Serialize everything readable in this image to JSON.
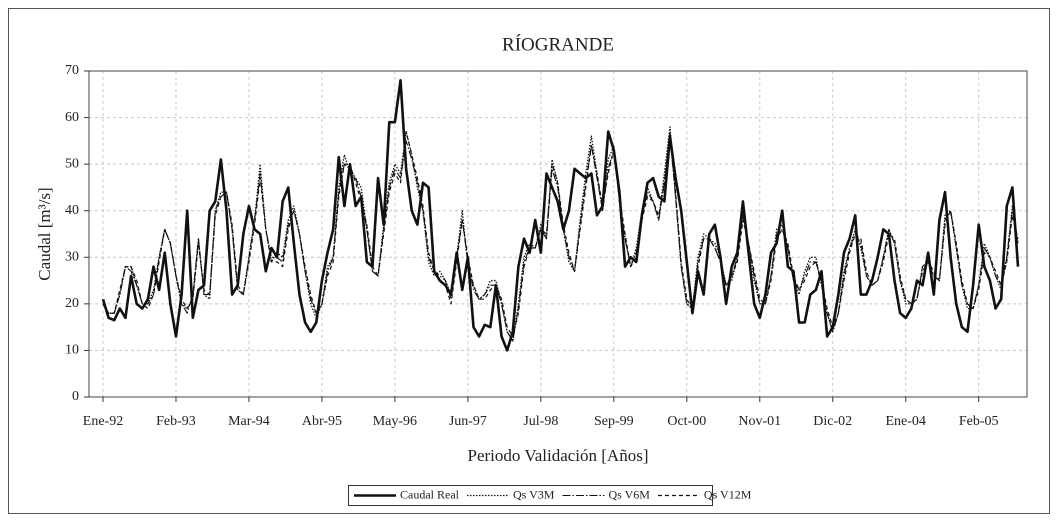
{
  "chart_data": {
    "type": "line",
    "title": "RÍOGRANDE",
    "x_label": "Periodo Validación [Años]",
    "y_label": "Caudal [m³/s]",
    "ylim": [
      0,
      70
    ],
    "yticks": [
      0,
      10,
      20,
      30,
      40,
      50,
      60,
      70
    ],
    "grid": true,
    "legend": "bottom",
    "categories": [
      "Ene-92",
      null,
      null,
      null,
      null,
      null,
      null,
      null,
      null,
      null,
      null,
      null,
      null,
      "Feb-93",
      null,
      null,
      null,
      null,
      null,
      null,
      null,
      null,
      null,
      null,
      null,
      null,
      "Mar-94",
      null,
      null,
      null,
      null,
      null,
      null,
      null,
      null,
      null,
      null,
      null,
      null,
      "Abr-95",
      null,
      null,
      null,
      null,
      null,
      null,
      null,
      null,
      null,
      null,
      null,
      null,
      "May-96",
      null,
      null,
      null,
      null,
      null,
      null,
      null,
      null,
      null,
      null,
      null,
      null,
      "Jun-97",
      null,
      null,
      null,
      null,
      null,
      null,
      null,
      null,
      null,
      null,
      null,
      null,
      "Jul-98",
      null,
      null,
      null,
      null,
      null,
      null,
      null,
      null,
      null,
      null,
      null,
      null,
      "Sep-99",
      null,
      null,
      null,
      null,
      null,
      null,
      null,
      null,
      null,
      null,
      null,
      null,
      "Oct-00",
      null,
      null,
      null,
      null,
      null,
      null,
      null,
      null,
      null,
      null,
      null,
      null,
      "Nov-01",
      null,
      null,
      null,
      null,
      null,
      null,
      null,
      null,
      null,
      null,
      null,
      null,
      "Dic-02",
      null,
      null,
      null,
      null,
      null,
      null,
      null,
      null,
      null,
      null,
      null,
      null,
      "Ene-04",
      null,
      null,
      null,
      null,
      null,
      null,
      null,
      null,
      null,
      null,
      null,
      null,
      "Feb-05",
      null,
      null,
      null,
      null,
      null,
      null,
      null
    ],
    "series": [
      {
        "name": "Caudal Real",
        "color": "#111111",
        "width": 2.6,
        "dash": "none",
        "values": [
          21,
          17,
          16.5,
          19,
          17,
          26,
          20,
          19,
          21,
          28,
          23,
          31,
          20,
          13,
          22,
          40,
          17,
          23,
          24,
          40,
          42,
          51,
          40,
          22,
          24,
          35,
          41,
          36,
          35,
          27,
          32,
          30,
          42,
          45,
          33,
          22,
          16,
          14,
          16,
          25,
          31,
          36,
          51.5,
          41,
          50,
          41,
          43,
          29,
          28,
          47,
          37,
          59,
          59,
          68,
          49,
          40,
          37,
          46,
          45,
          27,
          25,
          24,
          22,
          31,
          23,
          30,
          15,
          13,
          15.5,
          15,
          24,
          13,
          10,
          14,
          28,
          34,
          31,
          38,
          31,
          48,
          45,
          42,
          36,
          40,
          49,
          48,
          47,
          48,
          39,
          41,
          57,
          53,
          44,
          28,
          30,
          29,
          39,
          46,
          47,
          43,
          42,
          56,
          47,
          40,
          29,
          18,
          27,
          22,
          35,
          37,
          30,
          20,
          28,
          31,
          42,
          31,
          20,
          17,
          22,
          31,
          33,
          40,
          28,
          27,
          16,
          16,
          22,
          23,
          27,
          13,
          15,
          22,
          31,
          34,
          39,
          22,
          22,
          25,
          30,
          36,
          35,
          25,
          18,
          17,
          19,
          25,
          24,
          31,
          22,
          38,
          44,
          30,
          20,
          15,
          14,
          24,
          37,
          28,
          25,
          19,
          21,
          41,
          45,
          28
        ]
      },
      {
        "name": "Qs V3M",
        "color": "#111111",
        "width": 1.3,
        "dash": "1.5,1.5",
        "values": [
          20,
          18,
          18,
          22,
          28,
          28,
          24,
          20,
          20,
          23,
          30,
          36,
          33,
          26,
          20,
          19,
          21,
          34,
          22,
          21,
          40,
          44,
          44,
          36,
          23,
          22,
          30,
          38,
          50,
          36,
          29,
          31,
          30,
          38,
          41,
          35,
          27,
          20,
          17,
          20,
          28,
          30,
          45,
          52,
          48,
          47,
          45,
          36,
          27,
          26,
          37,
          46,
          50,
          48,
          57,
          52,
          45,
          40,
          29,
          26,
          27,
          25,
          22,
          30,
          40,
          28,
          24,
          21,
          22,
          25,
          25,
          20,
          14,
          12,
          20,
          30,
          33,
          32,
          37,
          34,
          51,
          46,
          36,
          29,
          27,
          38,
          48,
          56,
          48,
          40,
          51,
          54,
          42,
          34,
          28,
          32,
          40,
          45,
          42,
          38,
          48,
          58,
          43,
          28,
          20,
          19,
          30,
          35,
          34,
          33,
          30,
          24,
          25,
          30,
          40,
          33,
          25,
          20,
          20,
          26,
          36,
          37,
          32,
          25,
          22,
          27,
          30,
          30,
          24,
          18,
          14,
          18,
          27,
          32,
          36,
          32,
          26,
          24,
          25,
          30,
          36,
          33,
          25,
          20,
          20,
          21,
          28,
          29,
          26,
          25,
          39,
          40,
          32,
          24,
          19,
          19,
          24,
          33,
          30,
          26,
          23,
          30,
          41,
          33
        ]
      },
      {
        "name": "Qs V6M",
        "color": "#111111",
        "width": 1.1,
        "dash": "8,2,1.5,2",
        "values": [
          20,
          18,
          18,
          22,
          28,
          27,
          24,
          20,
          20,
          22,
          30,
          36,
          33,
          26,
          20,
          18,
          22,
          34,
          22,
          22,
          40,
          43,
          44,
          36,
          23,
          22,
          30,
          38,
          48,
          36,
          30,
          30,
          29,
          37,
          40,
          35,
          27,
          21,
          18,
          20,
          27,
          30,
          44,
          50,
          49,
          47,
          43,
          36,
          27,
          26,
          36,
          45,
          49,
          47,
          55,
          51,
          46,
          40,
          30,
          27,
          26,
          25,
          21,
          30,
          38,
          29,
          23,
          21,
          22,
          24,
          24,
          20,
          14,
          12,
          19,
          29,
          32,
          32,
          36,
          34,
          49,
          45,
          36,
          30,
          27,
          37,
          46,
          54,
          47,
          40,
          49,
          53,
          42,
          34,
          28,
          31,
          39,
          44,
          42,
          38,
          46,
          56,
          43,
          28,
          20,
          19,
          29,
          34,
          34,
          32,
          29,
          24,
          26,
          30,
          39,
          33,
          26,
          20,
          20,
          26,
          35,
          36,
          32,
          25,
          23,
          26,
          29,
          29,
          24,
          18,
          14,
          18,
          26,
          32,
          35,
          33,
          26,
          24,
          25,
          30,
          36,
          33,
          25,
          21,
          20,
          21,
          28,
          29,
          26,
          25,
          38,
          40,
          32,
          24,
          20,
          19,
          24,
          32,
          30,
          26,
          24,
          30,
          40,
          33
        ]
      },
      {
        "name": "Qs V12M",
        "color": "#111111",
        "width": 1.2,
        "dash": "4,3",
        "values": [
          20,
          18,
          18,
          23,
          28,
          28,
          25,
          20,
          19,
          22,
          29,
          36,
          33,
          26,
          21,
          19,
          21,
          33,
          23,
          22,
          39,
          43,
          44,
          37,
          24,
          22,
          29,
          37,
          47,
          36,
          29,
          29,
          28,
          36,
          40,
          35,
          28,
          22,
          18,
          20,
          26,
          29,
          43,
          50,
          50,
          46,
          42,
          37,
          28,
          26,
          35,
          44,
          48,
          46,
          57,
          52,
          47,
          41,
          31,
          27,
          25,
          24,
          20,
          29,
          38,
          30,
          24,
          21,
          21,
          23,
          24,
          21,
          15,
          13,
          18,
          28,
          32,
          32,
          36,
          35,
          50,
          46,
          37,
          31,
          27,
          36,
          45,
          54,
          48,
          41,
          48,
          53,
          43,
          35,
          28,
          30,
          38,
          43,
          42,
          39,
          46,
          57,
          44,
          29,
          21,
          19,
          28,
          34,
          34,
          32,
          29,
          24,
          26,
          29,
          38,
          33,
          27,
          21,
          20,
          25,
          34,
          36,
          33,
          26,
          23,
          25,
          28,
          29,
          25,
          19,
          15,
          18,
          25,
          31,
          35,
          34,
          27,
          24,
          25,
          29,
          35,
          34,
          26,
          21,
          20,
          21,
          27,
          29,
          27,
          25,
          37,
          40,
          33,
          25,
          20,
          19,
          23,
          31,
          30,
          27,
          24,
          29,
          39,
          34
        ]
      }
    ]
  }
}
